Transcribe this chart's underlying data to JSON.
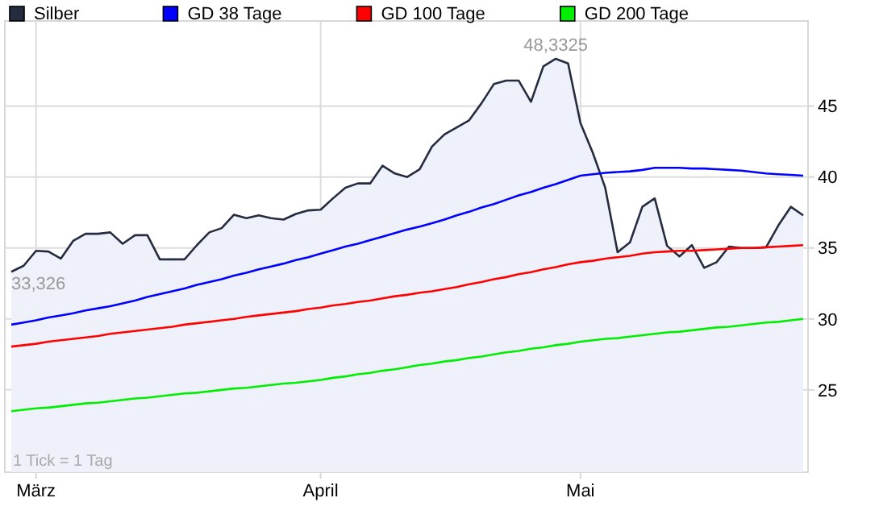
{
  "chart_data": {
    "type": "line",
    "categories": [
      null,
      null,
      "März",
      null,
      null,
      null,
      null,
      null,
      null,
      null,
      null,
      null,
      null,
      null,
      null,
      null,
      null,
      null,
      null,
      null,
      null,
      null,
      null,
      null,
      null,
      "April",
      null,
      null,
      null,
      null,
      null,
      null,
      null,
      null,
      null,
      null,
      null,
      null,
      null,
      null,
      null,
      null,
      null,
      null,
      null,
      null,
      "Mai",
      null,
      null,
      null,
      null,
      null,
      null,
      null,
      null,
      null,
      null,
      null,
      null,
      null,
      null,
      null,
      null,
      null,
      null
    ],
    "series": [
      {
        "name": "Silber",
        "type": "area",
        "color": "#262c40",
        "values": [
          33.326,
          33.75,
          34.8,
          34.75,
          34.25,
          35.5,
          36.0,
          36.0,
          36.1,
          35.3,
          35.9,
          35.9,
          34.2,
          34.2,
          34.2,
          35.2,
          36.1,
          36.4,
          37.35,
          37.1,
          37.3,
          37.1,
          37.0,
          37.4,
          37.65,
          37.7,
          38.5,
          39.25,
          39.55,
          39.55,
          40.8,
          40.25,
          40.0,
          40.55,
          42.15,
          43.0,
          43.5,
          44.0,
          45.2,
          46.55,
          46.8,
          46.8,
          45.3,
          47.8,
          48.3325,
          48.0,
          43.8,
          41.7,
          39.25,
          34.7,
          35.4,
          37.9,
          38.5,
          35.15,
          34.4,
          35.2,
          33.6,
          34.0,
          35.1,
          35.0,
          35.0,
          35.05,
          36.6,
          37.9,
          37.3
        ]
      },
      {
        "name": "GD 38 Tage",
        "color": "#0000ff",
        "values": [
          29.6,
          29.75,
          29.9,
          30.1,
          30.25,
          30.4,
          30.6,
          30.75,
          30.9,
          31.1,
          31.3,
          31.55,
          31.75,
          31.95,
          32.15,
          32.4,
          32.6,
          32.8,
          33.05,
          33.25,
          33.5,
          33.7,
          33.9,
          34.15,
          34.35,
          34.6,
          34.85,
          35.1,
          35.3,
          35.55,
          35.8,
          36.05,
          36.3,
          36.5,
          36.75,
          37.0,
          37.3,
          37.55,
          37.85,
          38.1,
          38.4,
          38.7,
          38.95,
          39.25,
          39.5,
          39.8,
          40.1,
          40.2,
          40.3,
          40.35,
          40.4,
          40.5,
          40.65,
          40.65,
          40.65,
          40.6,
          40.6,
          40.55,
          40.5,
          40.45,
          40.35,
          40.25,
          40.2,
          40.15,
          40.1
        ]
      },
      {
        "name": "GD 100 Tage",
        "color": "#ff0000",
        "values": [
          28.05,
          28.15,
          28.25,
          28.4,
          28.5,
          28.6,
          28.7,
          28.8,
          28.95,
          29.05,
          29.15,
          29.25,
          29.35,
          29.45,
          29.6,
          29.7,
          29.8,
          29.9,
          30.0,
          30.15,
          30.25,
          30.35,
          30.45,
          30.55,
          30.7,
          30.8,
          30.95,
          31.05,
          31.2,
          31.3,
          31.45,
          31.6,
          31.7,
          31.85,
          31.95,
          32.1,
          32.25,
          32.45,
          32.6,
          32.8,
          32.95,
          33.15,
          33.3,
          33.5,
          33.65,
          33.85,
          34.0,
          34.1,
          34.25,
          34.35,
          34.45,
          34.6,
          34.7,
          34.75,
          34.8,
          34.8,
          34.85,
          34.9,
          34.95,
          35.0,
          35.0,
          35.05,
          35.1,
          35.15,
          35.2
        ]
      },
      {
        "name": "GD 200 Tage",
        "color": "#00ee00",
        "values": [
          23.5,
          23.6,
          23.7,
          23.75,
          23.85,
          23.95,
          24.05,
          24.1,
          24.2,
          24.3,
          24.4,
          24.45,
          24.55,
          24.65,
          24.75,
          24.8,
          24.9,
          25.0,
          25.1,
          25.15,
          25.25,
          25.35,
          25.45,
          25.5,
          25.6,
          25.7,
          25.85,
          25.95,
          26.1,
          26.2,
          26.35,
          26.45,
          26.6,
          26.75,
          26.85,
          27.0,
          27.1,
          27.25,
          27.35,
          27.5,
          27.65,
          27.75,
          27.9,
          28.0,
          28.15,
          28.25,
          28.4,
          28.5,
          28.6,
          28.65,
          28.75,
          28.85,
          28.95,
          29.05,
          29.1,
          29.2,
          29.3,
          29.4,
          29.45,
          29.55,
          29.65,
          29.75,
          29.8,
          29.9,
          30.0
        ]
      }
    ],
    "ylim": [
      19.2,
      51.0
    ],
    "yticks": [
      25,
      30,
      35,
      40,
      45
    ],
    "grid": true,
    "legend": "top left",
    "annotations": [
      "33,326",
      {
        "text": "48,3325",
        "y": 48.3325
      },
      "1 Tick = 1 Tag"
    ]
  }
}
